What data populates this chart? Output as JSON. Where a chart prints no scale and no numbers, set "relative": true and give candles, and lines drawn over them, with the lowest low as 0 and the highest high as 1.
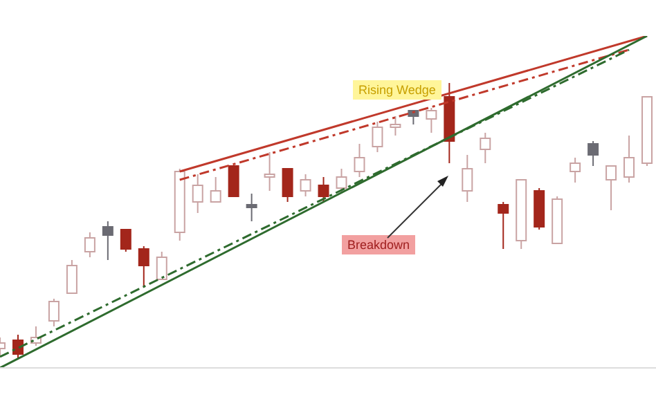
{
  "chart_data": {
    "type": "candlestick",
    "relative": true,
    "tick_labels": false,
    "categories": [
      null,
      null,
      null,
      null,
      null,
      null,
      null,
      null,
      null,
      null,
      null,
      null,
      null,
      null,
      null,
      null,
      null,
      null,
      null,
      null,
      null,
      null,
      null,
      null,
      null,
      null,
      null,
      null,
      null,
      null,
      null,
      null,
      null,
      null,
      null,
      null,
      null
    ],
    "ohlc": [
      [
        0.04,
        0.08,
        0.01,
        0.06
      ],
      [
        0.07,
        0.09,
        0,
        0.02
      ],
      [
        0.06,
        0.12,
        0.05,
        0.08
      ],
      [
        0.14,
        0.22,
        0.12,
        0.21
      ],
      [
        0.24,
        0.36,
        0.24,
        0.34
      ],
      [
        0.39,
        0.46,
        0.37,
        0.44
      ],
      [
        0.48,
        0.5,
        0.36,
        0.45
      ],
      [
        0.47,
        0.47,
        0.39,
        0.4
      ],
      [
        0.4,
        0.41,
        0.26,
        0.34
      ],
      [
        0.29,
        0.39,
        0.29,
        0.37
      ],
      [
        0.46,
        0.69,
        0.43,
        0.68
      ],
      [
        0.57,
        0.67,
        0.53,
        0.63
      ],
      [
        0.57,
        0.66,
        0.57,
        0.61
      ],
      [
        0.7,
        0.7,
        0.59,
        0.59
      ],
      [
        0.56,
        0.6,
        0.5,
        0.55
      ],
      [
        0.66,
        0.75,
        0.61,
        0.67
      ],
      [
        0.69,
        0.69,
        0.57,
        0.59
      ],
      [
        0.61,
        0.67,
        0.59,
        0.65
      ],
      [
        0.63,
        0.66,
        0.57,
        0.59
      ],
      [
        0.62,
        0.69,
        0.6,
        0.66
      ],
      [
        0.68,
        0.78,
        0.66,
        0.73
      ],
      [
        0.77,
        0.86,
        0.75,
        0.84
      ],
      [
        0.84,
        0.88,
        0.81,
        0.85
      ],
      [
        0.9,
        0.9,
        0.85,
        0.88
      ],
      [
        0.87,
        0.91,
        0.82,
        0.9
      ],
      [
        0.95,
        1,
        0.71,
        0.79
      ],
      [
        0.61,
        0.74,
        0.57,
        0.69
      ],
      [
        0.76,
        0.82,
        0.71,
        0.8
      ],
      [
        0.56,
        0.57,
        0.4,
        0.53
      ],
      [
        0.43,
        0.65,
        0.4,
        0.65
      ],
      [
        0.61,
        0.62,
        0.47,
        0.48
      ],
      [
        0.42,
        0.59,
        0.42,
        0.58
      ],
      [
        0.68,
        0.73,
        0.64,
        0.71
      ],
      [
        0.78,
        0.79,
        0.7,
        0.74
      ],
      [
        0.65,
        0.7,
        0.54,
        0.7
      ],
      [
        0.66,
        0.81,
        0.64,
        0.73
      ],
      [
        0.71,
        0.95,
        0.7,
        0.95
      ]
    ],
    "colors": [
      "#ffffff",
      "#a3261b",
      "#ffffff",
      "#ffffff",
      "#ffffff",
      "#ffffff",
      "#6b6b73",
      "#a3261b",
      "#a3261b",
      "#ffffff",
      "#ffffff",
      "#ffffff",
      "#ffffff",
      "#a3261b",
      "#6b6b73",
      "#ffffff",
      "#a3261b",
      "#ffffff",
      "#a3261b",
      "#ffffff",
      "#ffffff",
      "#ffffff",
      "#ffffff",
      "#6b6b73",
      "#ffffff",
      "#a3261b",
      "#ffffff",
      "#ffffff",
      "#a3261b",
      "#ffffff",
      "#a3261b",
      "#ffffff",
      "#ffffff",
      "#6b6b73",
      "#ffffff",
      "#ffffff",
      "#ffffff"
    ],
    "series": [
      {
        "type": "line",
        "color": "#c0392b",
        "line_style": "solid",
        "values": [
          null,
          null,
          null,
          null,
          null,
          null,
          null,
          null,
          null,
          null,
          0.68,
          null,
          null,
          null,
          null,
          null,
          null,
          null,
          null,
          null,
          null,
          null,
          null,
          null,
          null,
          null,
          null,
          null,
          null,
          null,
          null,
          null,
          null,
          null,
          null,
          null,
          1.17
        ]
      },
      {
        "type": "line",
        "color": "#c0392b",
        "line_style": "dashed",
        "values": [
          null,
          null,
          null,
          null,
          null,
          null,
          null,
          null,
          null,
          null,
          0.65,
          null,
          null,
          null,
          null,
          null,
          null,
          null,
          null,
          null,
          null,
          null,
          null,
          null,
          null,
          null,
          null,
          null,
          null,
          null,
          null,
          null,
          null,
          null,
          null,
          1.12,
          null
        ]
      },
      {
        "type": "line",
        "color": "#2e6b2e",
        "line_style": "solid",
        "values": [
          -0.03,
          null,
          null,
          null,
          null,
          null,
          null,
          null,
          null,
          null,
          null,
          null,
          null,
          null,
          null,
          null,
          null,
          null,
          null,
          null,
          null,
          null,
          null,
          null,
          null,
          null,
          null,
          null,
          null,
          null,
          null,
          null,
          null,
          null,
          null,
          null,
          1.17
        ]
      },
      {
        "type": "line",
        "color": "#2e6b2e",
        "line_style": "dashed",
        "values": [
          0.01,
          null,
          null,
          null,
          null,
          null,
          null,
          null,
          null,
          null,
          null,
          null,
          null,
          null,
          null,
          null,
          null,
          null,
          null,
          null,
          null,
          null,
          null,
          null,
          null,
          null,
          null,
          null,
          null,
          null,
          null,
          null,
          null,
          null,
          null,
          1.12,
          null
        ]
      }
    ],
    "annotations": [
      "Rising Wedge",
      "Breakdown"
    ]
  }
}
